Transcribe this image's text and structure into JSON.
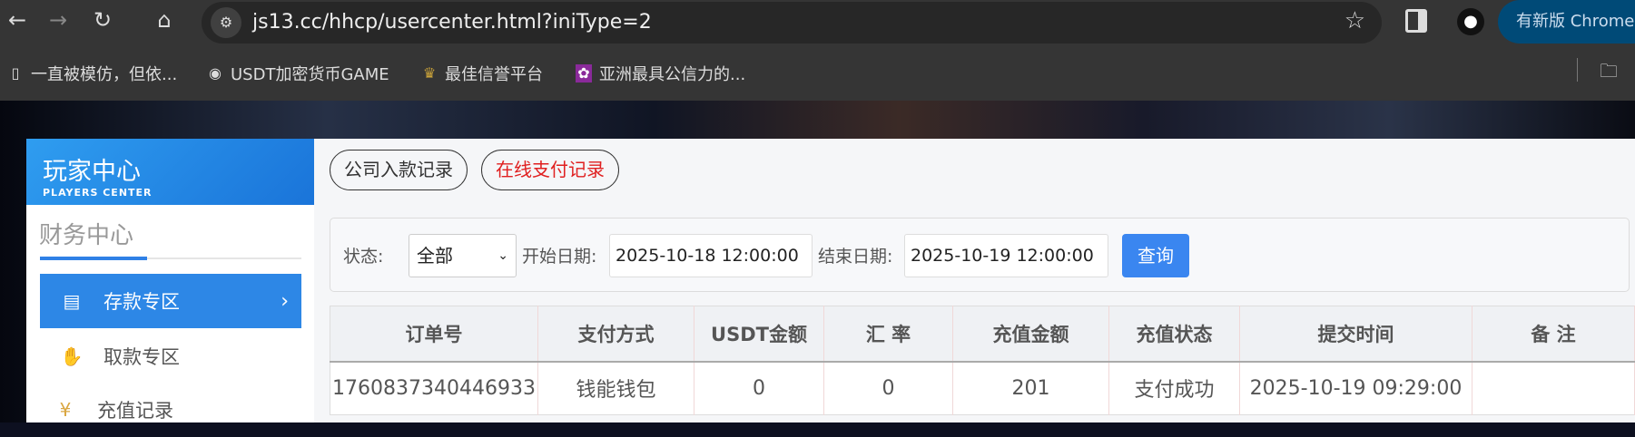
{
  "browser": {
    "url": "js13.cc/hhcp/usercenter.html?iniType=2",
    "update_label": "有新版 Chrome",
    "bookmarks": [
      {
        "label": "一直被模仿，但依...",
        "icon": "page-icon"
      },
      {
        "label": "USDT加密货币GAME",
        "icon": "globe-icon"
      },
      {
        "label": "最佳信誉平台",
        "icon": "site-logo-icon"
      },
      {
        "label": "亚洲最具公信力的...",
        "icon": "site-logo-icon"
      }
    ]
  },
  "sidebar": {
    "header_title": "玩家中心",
    "header_subtitle": "PLAYERS CENTER",
    "section_title": "财务中心",
    "items": [
      {
        "label": "存款专区",
        "icon": "card-icon",
        "active": true
      },
      {
        "label": "取款专区",
        "icon": "hand-money-icon"
      },
      {
        "label": "充值记录",
        "icon": "money-bag-icon"
      }
    ]
  },
  "tabs": [
    {
      "label": "公司入款记录",
      "active": false
    },
    {
      "label": "在线支付记录",
      "active": true,
      "color": "#e02020"
    }
  ],
  "filter": {
    "status_label": "状态:",
    "status_value": "全部",
    "start_label": "开始日期:",
    "start_value": "2025-10-18 12:00:00",
    "end_label": "结束日期:",
    "end_value": "2025-10-19 12:00:00",
    "query_label": "查询"
  },
  "table": {
    "columns": [
      "订单号",
      "支付方式",
      "USDT金额",
      "汇 率",
      "充值金额",
      "充值状态",
      "提交时间",
      "备 注"
    ],
    "rows": [
      [
        "1760837340446933",
        "钱能钱包",
        "0",
        "0",
        "201",
        "支付成功",
        "2025-10-19 09:29:00",
        ""
      ]
    ]
  }
}
